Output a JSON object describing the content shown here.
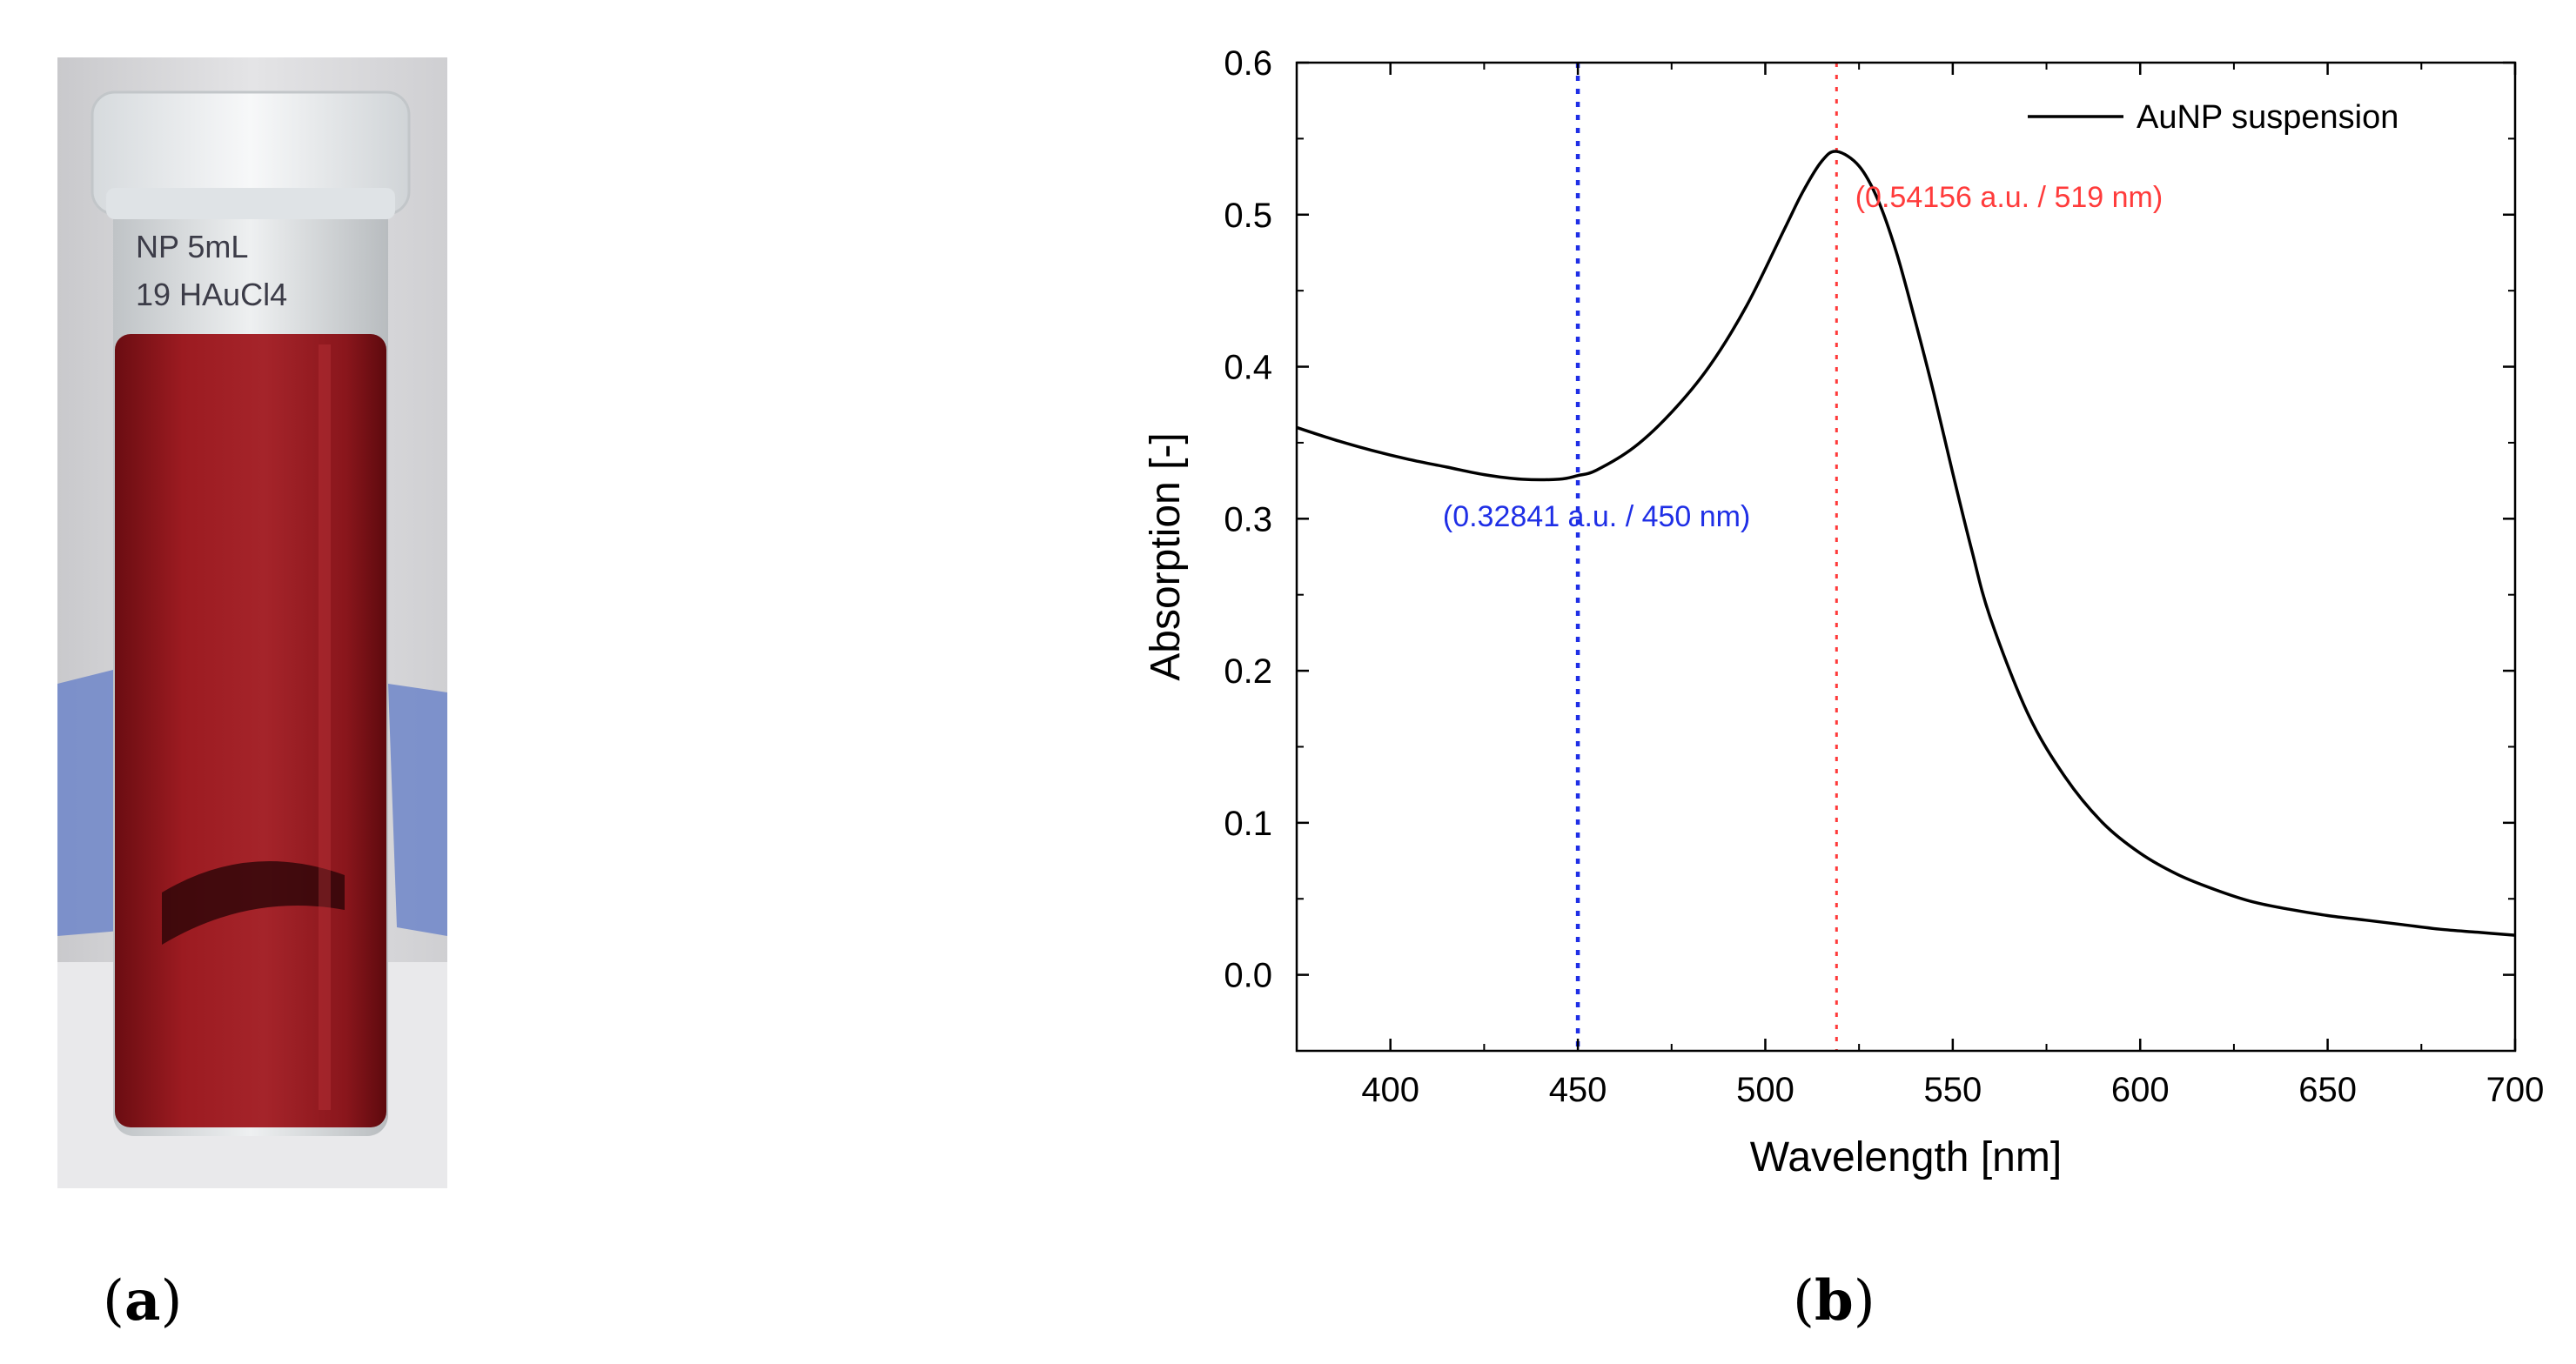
{
  "panels": {
    "a": {
      "caption_open": "(",
      "caption_letter": "a",
      "caption_close": ")"
    },
    "b": {
      "caption_open": "(",
      "caption_letter": "b",
      "caption_close": ")"
    }
  },
  "photo": {
    "label_lines": [
      "NP  5mL",
      "19  HAuCl4"
    ],
    "colors": {
      "liquid": "#8e1419",
      "liquid_dark": "#5a0a0e",
      "cap": "#eceff1",
      "background": "#d9d9dc"
    }
  },
  "chart_data": {
    "type": "line",
    "title": "",
    "xlabel": "Wavelength [nm]",
    "ylabel": "Absorption [-]",
    "xlim": [
      375,
      700
    ],
    "ylim": [
      -0.05,
      0.6
    ],
    "xticks": [
      400,
      450,
      500,
      550,
      600,
      650,
      700
    ],
    "yticks": [
      0.0,
      0.1,
      0.2,
      0.3,
      0.4,
      0.5,
      0.6
    ],
    "ytick_labels": [
      "0.0",
      "0.1",
      "0.2",
      "0.3",
      "0.4",
      "0.5",
      "0.6"
    ],
    "legend": {
      "position": "top-right",
      "entries": [
        "AuNP suspension"
      ]
    },
    "series": [
      {
        "name": "AuNP suspension",
        "color": "#000000",
        "x": [
          375,
          385,
          395,
          405,
          415,
          425,
          435,
          445,
          450,
          455,
          465,
          475,
          485,
          495,
          505,
          510,
          515,
          519,
          525,
          530,
          535,
          540,
          545,
          550,
          555,
          560,
          570,
          580,
          590,
          600,
          610,
          620,
          630,
          640,
          650,
          660,
          670,
          680,
          690,
          700
        ],
        "y": [
          0.36,
          0.352,
          0.345,
          0.339,
          0.334,
          0.329,
          0.326,
          0.326,
          0.3284,
          0.332,
          0.347,
          0.37,
          0.4,
          0.44,
          0.49,
          0.515,
          0.535,
          0.5416,
          0.532,
          0.51,
          0.475,
          0.43,
          0.382,
          0.33,
          0.28,
          0.235,
          0.172,
          0.13,
          0.1,
          0.08,
          0.066,
          0.056,
          0.048,
          0.043,
          0.039,
          0.036,
          0.033,
          0.03,
          0.028,
          0.026
        ]
      }
    ],
    "markers": [
      {
        "x": 450,
        "y": 0.32841,
        "color": "#1f2fe6",
        "label": "(0.32841 a.u. / 450 nm)",
        "label_x": 455,
        "label_y": 0.295
      },
      {
        "x": 519,
        "y": 0.54156,
        "color": "#ff3b3b",
        "label": "(0.54156 a.u. / 519 nm)",
        "label_x": 565,
        "label_y": 0.505
      }
    ]
  }
}
